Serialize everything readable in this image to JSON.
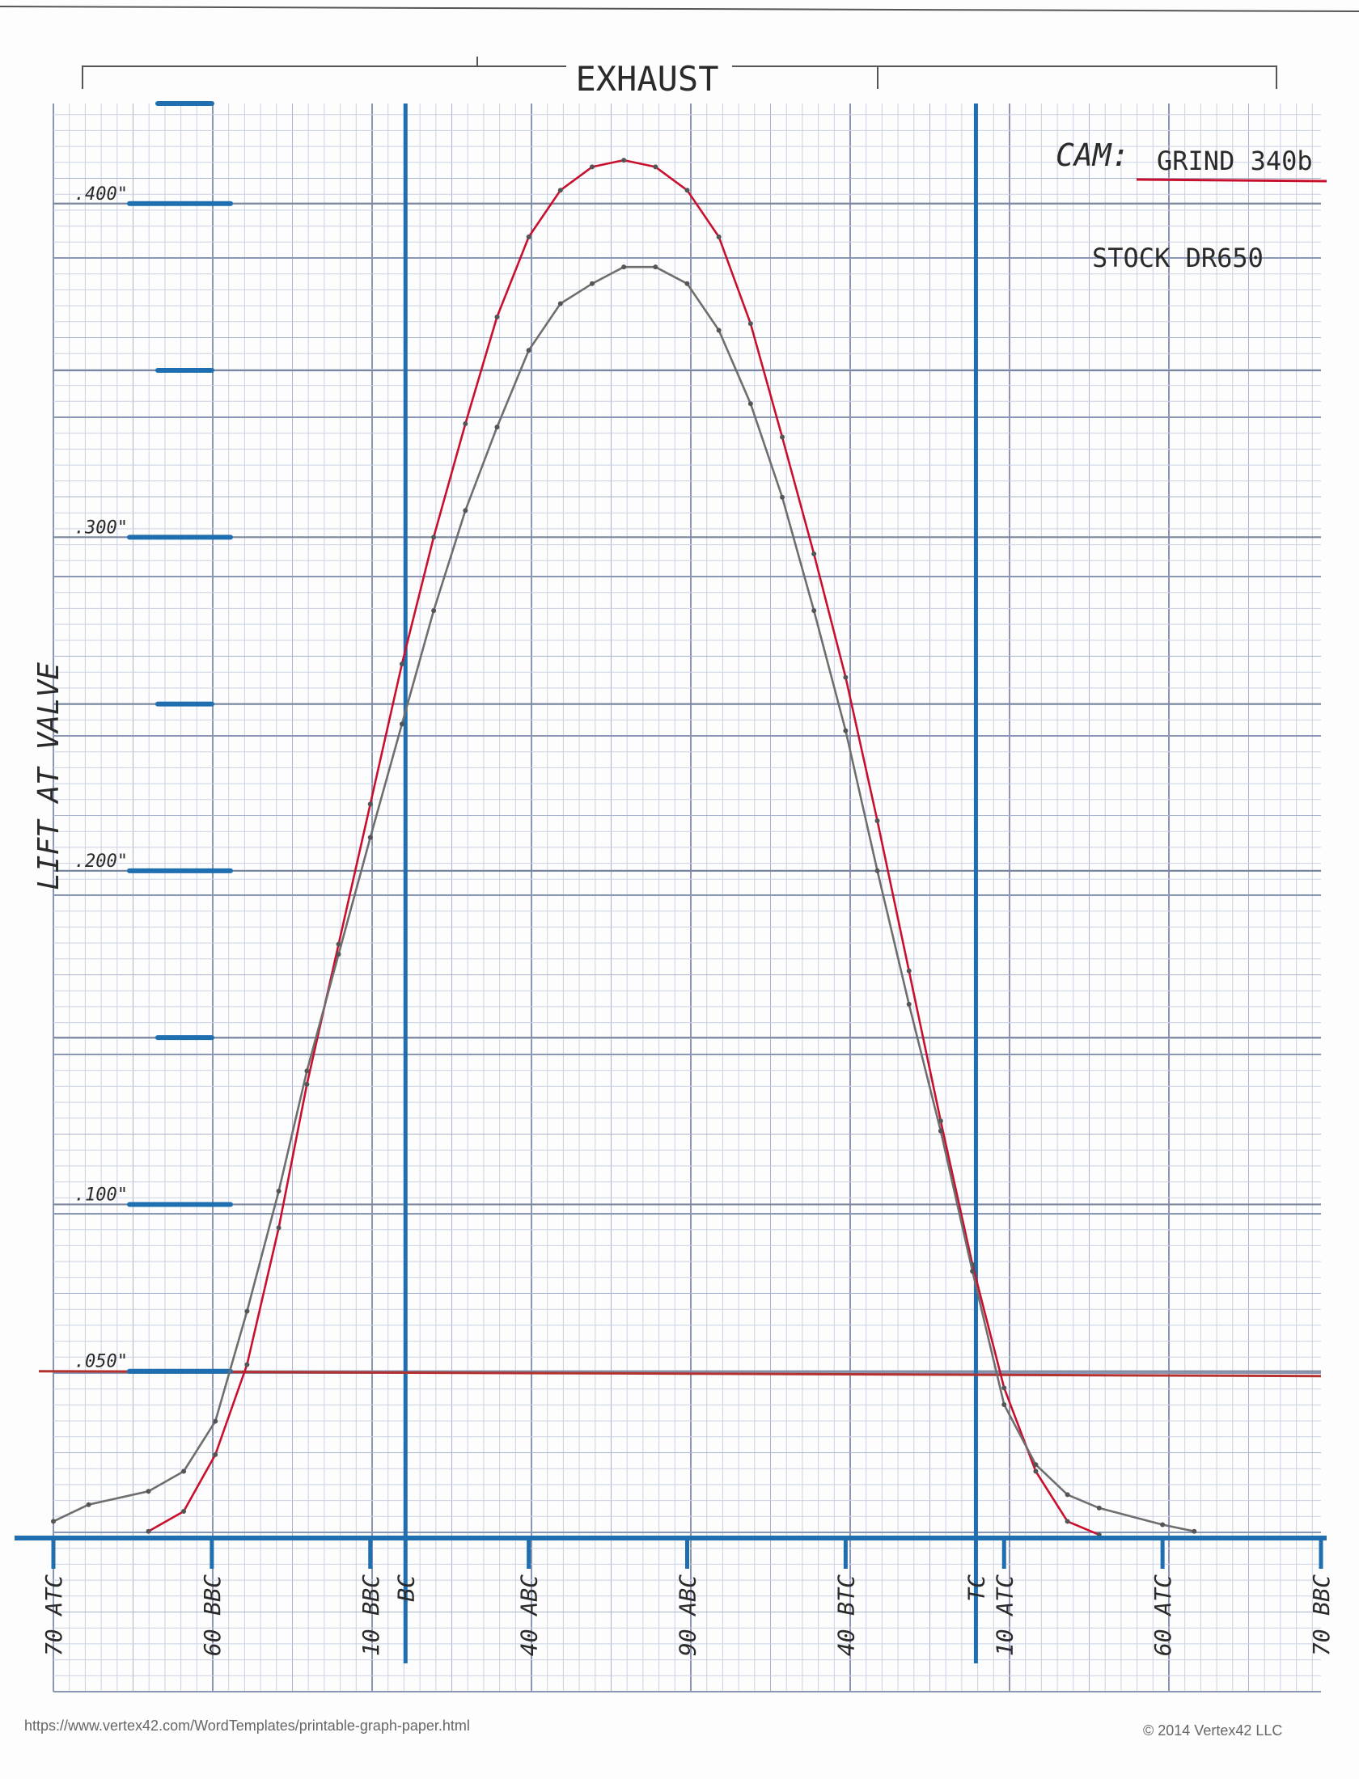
{
  "chart_data": {
    "type": "line",
    "title": "EXHAUST",
    "ylabel": "LIFT AT VALVE",
    "annotations": {
      "cam_label": "CAM:",
      "cam_value": "GRIND 340b",
      "stock_label": "STOCK DR650"
    },
    "ylim": [
      0,
      0.43
    ],
    "xlim": [
      0,
      360
    ],
    "y_ticks": [
      ".050\"",
      ".100\"",
      ".200\"",
      ".300\"",
      ".400\""
    ],
    "y_tick_values": [
      0.05,
      0.1,
      0.2,
      0.3,
      0.4
    ],
    "x_ticks": [
      {
        "label": "70 ATC",
        "value": 0
      },
      {
        "label": "60 BBC",
        "value": 45
      },
      {
        "label": "10 BBC",
        "value": 90
      },
      {
        "label": "BC",
        "value": 100
      },
      {
        "label": "40 ABC",
        "value": 135
      },
      {
        "label": "90 ABC",
        "value": 180
      },
      {
        "label": "40 BTC",
        "value": 225
      },
      {
        "label": "TC",
        "value": 262
      },
      {
        "label": "10 ATC",
        "value": 270
      },
      {
        "label": "60 ATC",
        "value": 315
      },
      {
        "label": "70 BBC",
        "value": 360
      }
    ],
    "reference_lines": {
      "vertical": [
        100,
        262
      ],
      "horizontal": [
        0.05
      ]
    },
    "grid": true,
    "series": [
      {
        "color": "#c8102e",
        "x": [
          27,
          37,
          46,
          55,
          64,
          72,
          81,
          90,
          99,
          108,
          117,
          126,
          135,
          144,
          153,
          162,
          171,
          180,
          189,
          198,
          207,
          216,
          225,
          234,
          243,
          252,
          261,
          270,
          279,
          288,
          297
        ],
        "y": [
          0.002,
          0.008,
          0.025,
          0.052,
          0.093,
          0.136,
          0.178,
          0.22,
          0.262,
          0.3,
          0.334,
          0.366,
          0.39,
          0.404,
          0.411,
          0.413,
          0.411,
          0.404,
          0.39,
          0.364,
          0.33,
          0.295,
          0.258,
          0.215,
          0.17,
          0.125,
          0.082,
          0.045,
          0.02,
          0.005,
          0.001
        ]
      },
      {
        "color": "#6e6e6e",
        "x": [
          0,
          10,
          27,
          37,
          46,
          55,
          64,
          72,
          81,
          90,
          99,
          108,
          117,
          126,
          135,
          144,
          153,
          162,
          171,
          180,
          189,
          198,
          207,
          216,
          225,
          234,
          243,
          252,
          261,
          270,
          279,
          288,
          297,
          315,
          324
        ],
        "y": [
          0.005,
          0.01,
          0.014,
          0.02,
          0.035,
          0.068,
          0.104,
          0.14,
          0.175,
          0.21,
          0.244,
          0.278,
          0.308,
          0.333,
          0.356,
          0.37,
          0.376,
          0.381,
          0.381,
          0.376,
          0.362,
          0.34,
          0.312,
          0.278,
          0.242,
          0.2,
          0.16,
          0.122,
          0.08,
          0.04,
          0.022,
          0.013,
          0.009,
          0.004,
          0.002
        ]
      }
    ]
  },
  "footer": {
    "url": "https://www.vertex42.com/WordTemplates/printable-graph-paper.html",
    "copyright": "© 2014 Vertex42 LLC"
  }
}
